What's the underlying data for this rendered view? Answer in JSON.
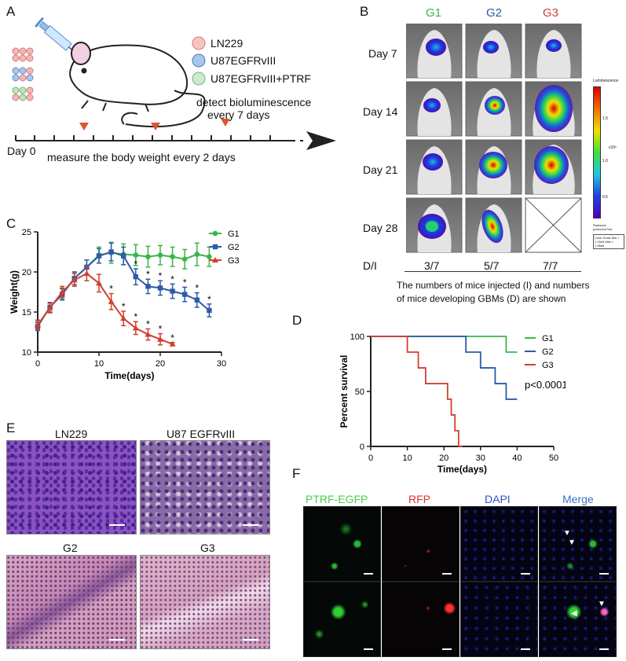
{
  "panels": {
    "a": "A",
    "b": "B",
    "c": "C",
    "d": "D",
    "e": "E",
    "f": "F"
  },
  "panel_a": {
    "cell_lines": [
      "LN229",
      "U87EGFRvIII",
      "U87EGFRvIII+PTRF"
    ],
    "detect_line1": "detect bioluminescence",
    "detect_line2": "every 7 days",
    "day0": "Day 0",
    "measure": "measure the body weight every 2 days"
  },
  "panel_b": {
    "groups": [
      "G1",
      "G2",
      "G3"
    ],
    "group_colors": [
      "#3cb44b",
      "#2e5aa8",
      "#d0402f"
    ],
    "days": [
      "Day 7",
      "Day 14",
      "Day 21",
      "Day 28"
    ],
    "di_label": "D/I",
    "di_values": [
      "3/7",
      "5/7",
      "7/7"
    ],
    "caption_line1": "The numbers of mice injected (I) and  numbers",
    "caption_line2": "of mice developing GBMs (D) are shown",
    "colorbar_title": "Luminescence",
    "colorbar_exponent": "x10⁶",
    "colorbar_ticks": [
      "1.5",
      "1.0",
      "0.5"
    ],
    "colorbar_unit": "Radiance (p/sec/cm²/sr)",
    "color_scale_text": "Color Scale Min = 1.16e5 Max = 1.95e6"
  },
  "chart_data": [
    {
      "type": "line",
      "xlabel": "Time(days)",
      "ylabel": "Weight(g)",
      "xlim": [
        0,
        30
      ],
      "ylim": [
        10,
        25
      ],
      "xticks": [
        0,
        10,
        20,
        30
      ],
      "yticks": [
        10,
        15,
        20,
        25
      ],
      "legend_position": "top-right",
      "series": [
        {
          "name": "G1",
          "marker": "circle",
          "color": "#3cb44b",
          "x": [
            0,
            2,
            4,
            6,
            8,
            10,
            12,
            14,
            16,
            18,
            20,
            22,
            24,
            26,
            28
          ],
          "y": [
            13.3,
            15.6,
            17.3,
            19.2,
            20.6,
            22.1,
            22.4,
            22.2,
            22.1,
            21.9,
            22.1,
            21.9,
            21.6,
            22.2,
            21.9
          ],
          "err": [
            0.6,
            0.6,
            0.7,
            0.8,
            0.9,
            1.0,
            1.3,
            1.3,
            1.3,
            1.3,
            1.2,
            1.2,
            1.2,
            1.4,
            1.2
          ]
        },
        {
          "name": "G2",
          "marker": "square",
          "color": "#2e5aa8",
          "x": [
            0,
            2,
            4,
            6,
            8,
            10,
            12,
            14,
            16,
            18,
            20,
            22,
            24,
            26,
            28
          ],
          "y": [
            13.2,
            15.6,
            17.2,
            19.2,
            20.6,
            22.0,
            22.5,
            22.0,
            19.4,
            18.2,
            18.0,
            17.6,
            17.2,
            16.5,
            15.2
          ],
          "err": [
            0.5,
            0.6,
            0.7,
            0.8,
            0.9,
            0.9,
            1.1,
            1.1,
            1.0,
            0.9,
            0.9,
            0.9,
            0.9,
            0.9,
            0.8
          ],
          "stars": [
            16,
            18,
            20,
            22,
            24,
            26,
            28
          ]
        },
        {
          "name": "G3",
          "marker": "triangle",
          "color": "#d0402f",
          "x": [
            0,
            2,
            4,
            6,
            8,
            10,
            12,
            14,
            16,
            18,
            20,
            22
          ],
          "y": [
            13.4,
            15.5,
            17.5,
            19.0,
            19.8,
            18.6,
            16.3,
            14.2,
            13.0,
            12.2,
            11.6,
            11.0
          ],
          "err": [
            0.6,
            0.6,
            0.7,
            0.8,
            0.9,
            1.1,
            1.0,
            0.9,
            0.8,
            0.7,
            0.7,
            0.2
          ],
          "stars": [
            12,
            14,
            16,
            18,
            20,
            22
          ]
        }
      ],
      "star": "*"
    },
    {
      "type": "line",
      "subtype": "kaplan-meier",
      "xlabel": "Time(days)",
      "ylabel": "Percent survival",
      "xlim": [
        0,
        50
      ],
      "ylim": [
        0,
        100
      ],
      "xticks": [
        0,
        10,
        20,
        30,
        40,
        50
      ],
      "yticks": [
        0,
        50,
        100
      ],
      "legend_position": "top-right",
      "annotation": "p<0.0001",
      "series": [
        {
          "name": "G1",
          "color": "#3cb44b",
          "steps": [
            [
              0,
              100
            ],
            [
              37,
              100
            ],
            [
              37,
              85.7
            ],
            [
              40,
              85.7
            ]
          ]
        },
        {
          "name": "G2",
          "color": "#2e5aa8",
          "steps": [
            [
              0,
              100
            ],
            [
              26,
              100
            ],
            [
              26,
              85.7
            ],
            [
              30,
              85.7
            ],
            [
              30,
              71.4
            ],
            [
              34,
              71.4
            ],
            [
              34,
              57.1
            ],
            [
              37,
              57.1
            ],
            [
              37,
              42.9
            ],
            [
              40,
              42.9
            ]
          ]
        },
        {
          "name": "G3",
          "color": "#d0402f",
          "steps": [
            [
              0,
              100
            ],
            [
              10,
              100
            ],
            [
              10,
              85.7
            ],
            [
              13,
              85.7
            ],
            [
              13,
              71.4
            ],
            [
              15,
              71.4
            ],
            [
              15,
              57.1
            ],
            [
              21,
              57.1
            ],
            [
              21,
              42.9
            ],
            [
              22,
              42.9
            ],
            [
              22,
              28.6
            ],
            [
              23,
              28.6
            ],
            [
              23,
              14.3
            ],
            [
              24,
              14.3
            ],
            [
              24,
              0
            ],
            [
              25,
              0
            ]
          ]
        }
      ]
    }
  ],
  "panel_e": {
    "titles": [
      "LN229",
      "U87 EGFRvIII",
      "G2",
      "G3"
    ]
  },
  "panel_f": {
    "titles": [
      "PTRF-EGFP",
      "RFP",
      "DAPI",
      "Merge"
    ],
    "title_colors": [
      "#4ad04a",
      "#e03030",
      "#3050c8",
      "#3a6fc0"
    ]
  }
}
